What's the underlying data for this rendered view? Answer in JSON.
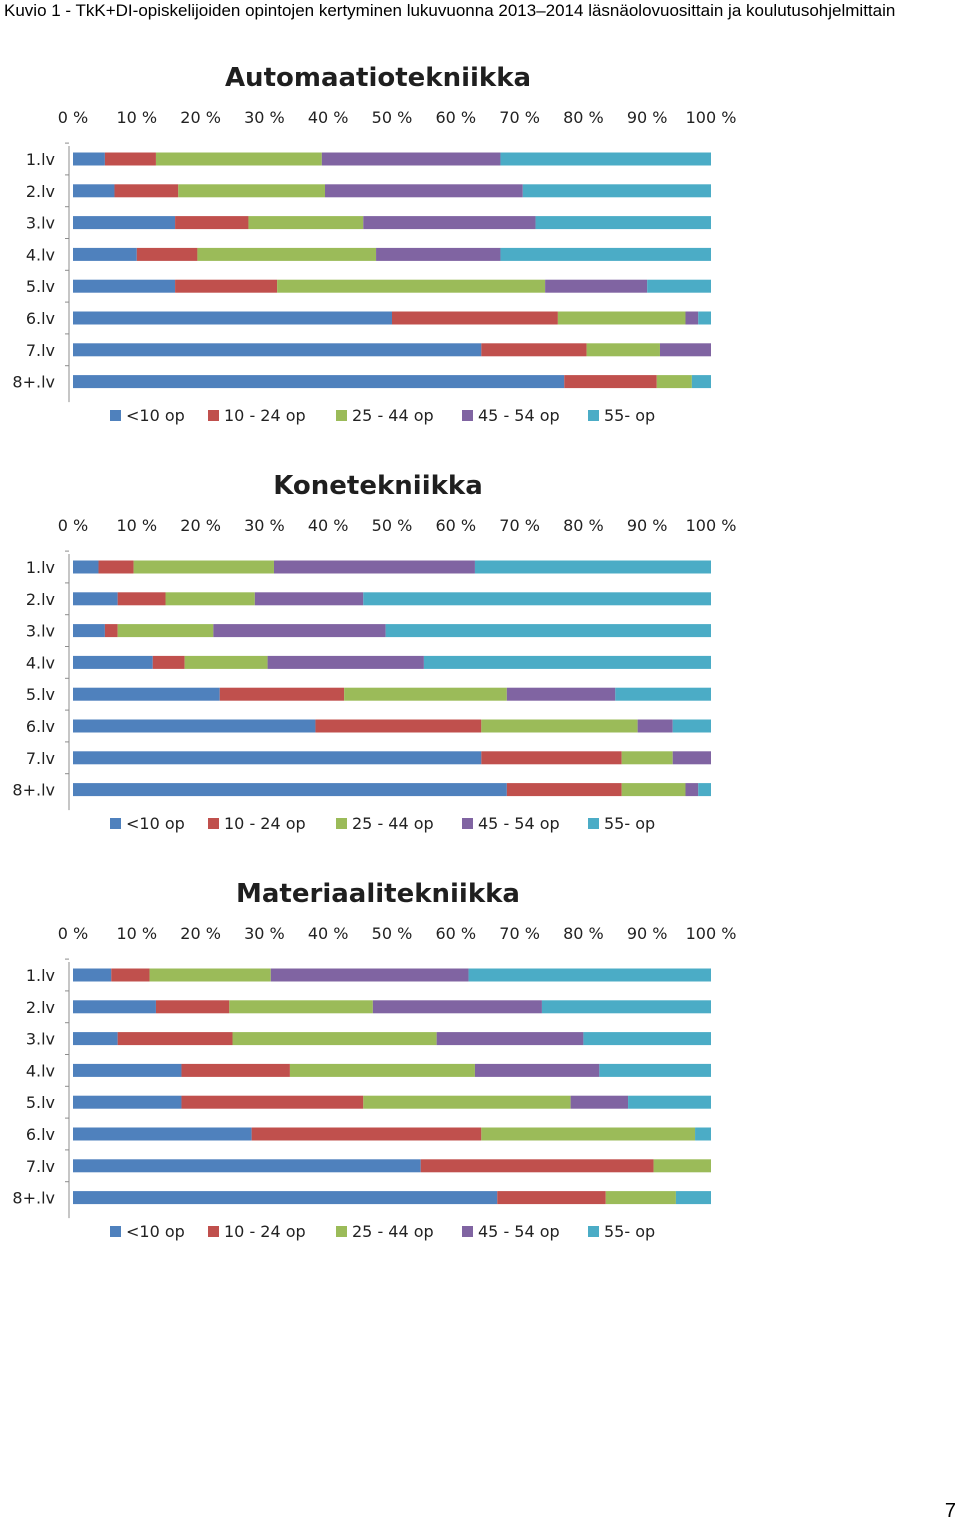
{
  "caption": "Kuvio 1 - TkK+DI-opiskelijoiden opintojen kertyminen lukuvuonna 2013–2014 läsnäolovuosittain ja koulutusohjelmittain",
  "page_number": "7",
  "colors": {
    "<10 op": "#4F81BD",
    "10 - 24 op": "#C0504D",
    "25 - 44 op": "#9BBB59",
    "45 - 54 op": "#8064A2",
    "55- op": "#4BACC6"
  },
  "chart_data": [
    {
      "type": "bar",
      "orientation": "horizontal",
      "stacked": "100%",
      "title": "Automaatiotekniikka",
      "xlim": [
        0,
        100
      ],
      "x_ticks": [
        "0 %",
        "10 %",
        "20 %",
        "30 %",
        "40 %",
        "50 %",
        "60 %",
        "70 %",
        "80 %",
        "90 %",
        "100 %"
      ],
      "categories": [
        "1.lv",
        "2.lv",
        "3.lv",
        "4.lv",
        "5.lv",
        "6.lv",
        "7.lv",
        "8+.lv"
      ],
      "legend_position": "bottom",
      "series": [
        {
          "name": "<10 op",
          "values": [
            5,
            6.5,
            16,
            10,
            16,
            50,
            64,
            77
          ]
        },
        {
          "name": "10 - 24 op",
          "values": [
            8,
            10,
            11.5,
            9.5,
            16,
            26,
            16.5,
            14.5
          ]
        },
        {
          "name": "25 - 44 op",
          "values": [
            26,
            23,
            18,
            28,
            42,
            20,
            11.5,
            5.5
          ]
        },
        {
          "name": "45 - 54 op",
          "values": [
            28,
            31,
            27,
            19.5,
            16,
            2,
            8,
            0
          ]
        },
        {
          "name": "55- op",
          "values": [
            33,
            29.5,
            27.5,
            33,
            10,
            2,
            0,
            3
          ]
        }
      ]
    },
    {
      "type": "bar",
      "orientation": "horizontal",
      "stacked": "100%",
      "title": "Konetekniikka",
      "xlim": [
        0,
        100
      ],
      "x_ticks": [
        "0 %",
        "10 %",
        "20 %",
        "30 %",
        "40 %",
        "50 %",
        "60 %",
        "70 %",
        "80 %",
        "90 %",
        "100 %"
      ],
      "categories": [
        "1.lv",
        "2.lv",
        "3.lv",
        "4.lv",
        "5.lv",
        "6.lv",
        "7.lv",
        "8+.lv"
      ],
      "legend_position": "bottom",
      "series": [
        {
          "name": "<10 op",
          "values": [
            4,
            7,
            5,
            12.5,
            23,
            38,
            64,
            68
          ]
        },
        {
          "name": "10 - 24 op",
          "values": [
            5.5,
            7.5,
            2,
            5,
            19.5,
            26,
            22,
            18
          ]
        },
        {
          "name": "25 - 44 op",
          "values": [
            22,
            14,
            15,
            13,
            25.5,
            24.5,
            8,
            10
          ]
        },
        {
          "name": "45 - 54 op",
          "values": [
            31.5,
            17,
            27,
            24.5,
            17,
            5.5,
            6,
            2
          ]
        },
        {
          "name": "55- op",
          "values": [
            37,
            54.5,
            51,
            45,
            15,
            6,
            0,
            2
          ]
        }
      ]
    },
    {
      "type": "bar",
      "orientation": "horizontal",
      "stacked": "100%",
      "title": "Materiaalitekniikka",
      "xlim": [
        0,
        100
      ],
      "x_ticks": [
        "0 %",
        "10 %",
        "20 %",
        "30 %",
        "40 %",
        "50 %",
        "60 %",
        "70 %",
        "80 %",
        "90 %",
        "100 %"
      ],
      "categories": [
        "1.lv",
        "2.lv",
        "3.lv",
        "4.lv",
        "5.lv",
        "6.lv",
        "7.lv",
        "8+.lv"
      ],
      "legend_position": "bottom",
      "series": [
        {
          "name": "<10 op",
          "values": [
            6,
            13,
            7,
            17,
            17,
            28,
            54.5,
            66.5
          ]
        },
        {
          "name": "10 - 24 op",
          "values": [
            6,
            11.5,
            18,
            17,
            28.5,
            36,
            36.5,
            17
          ]
        },
        {
          "name": "25 - 44 op",
          "values": [
            19,
            22.5,
            32,
            29,
            32.5,
            33.5,
            9,
            11
          ]
        },
        {
          "name": "45 - 54 op",
          "values": [
            31,
            26.5,
            23,
            19.5,
            9,
            0,
            0,
            0
          ]
        },
        {
          "name": "55- op",
          "values": [
            38,
            26.5,
            20,
            17.5,
            13,
            2.5,
            0,
            5.5
          ]
        }
      ]
    }
  ]
}
